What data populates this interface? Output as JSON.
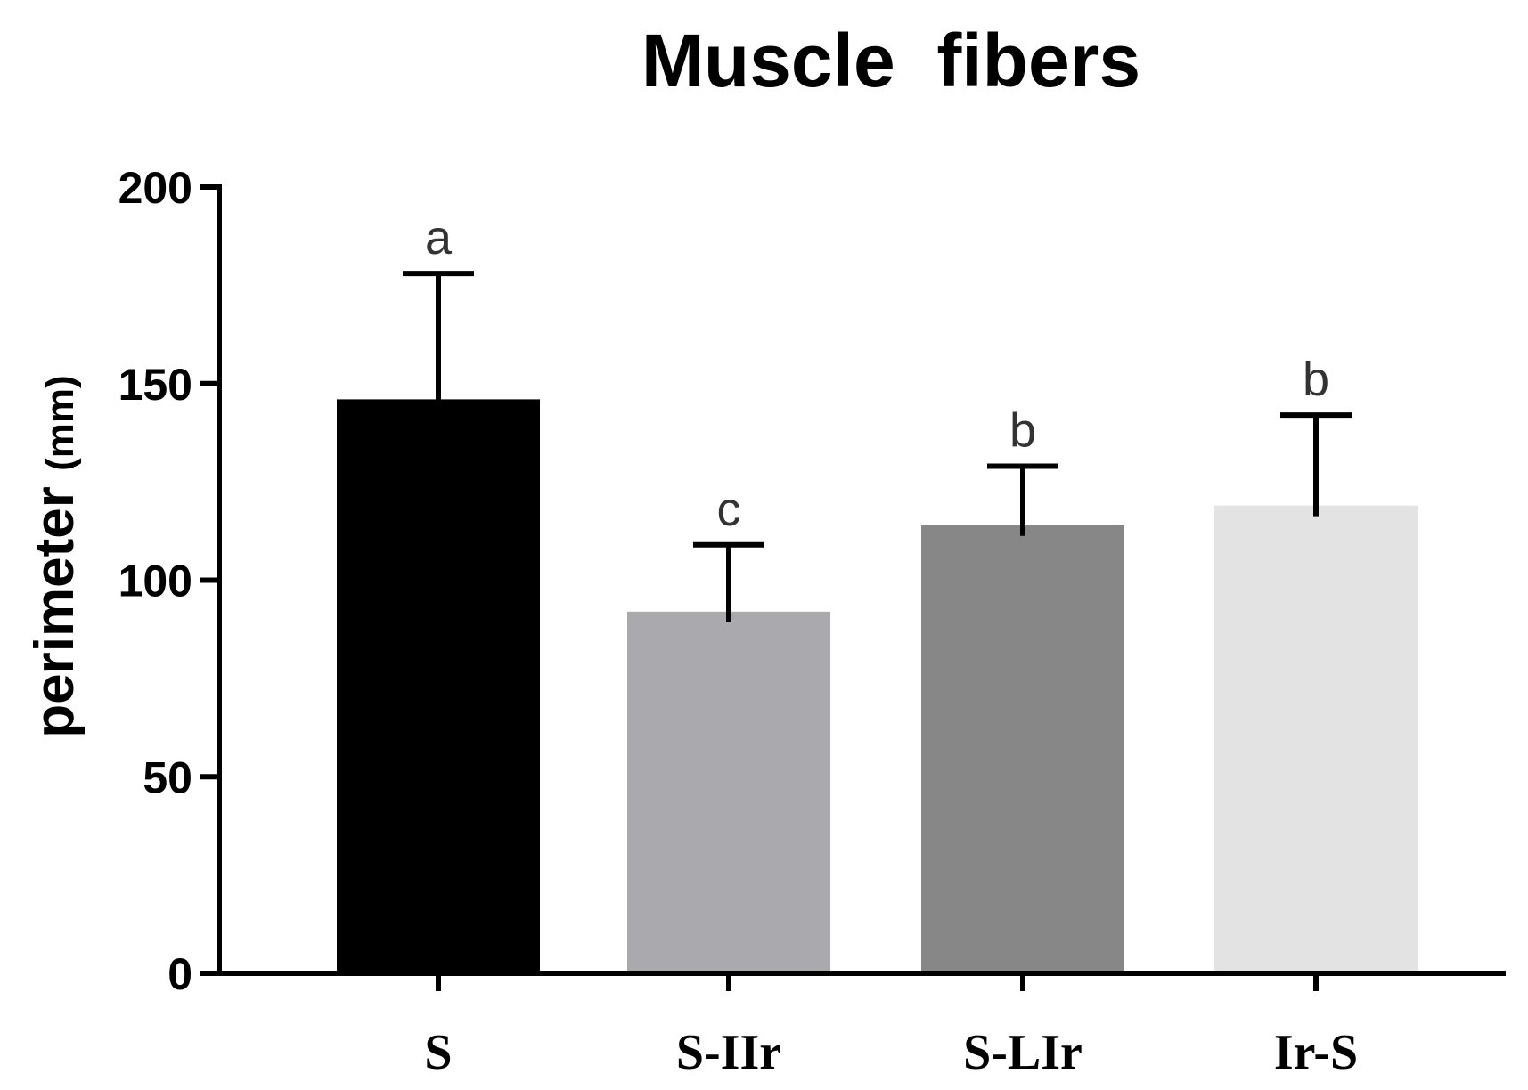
{
  "chart_data": {
    "type": "bar",
    "title": "Muscle  fibers",
    "ylabel": "perimeter",
    "ylabel_unit": "(mm)",
    "xlabel": "",
    "ylim": [
      0,
      200
    ],
    "yticks": [
      "0",
      "50",
      "100",
      "150",
      "200"
    ],
    "categories": [
      "S",
      "S-IIr",
      "S-LIr",
      "Ir-S"
    ],
    "values": [
      146,
      92,
      114,
      119
    ],
    "error_upper": [
      32,
      17,
      15,
      23
    ],
    "significance_labels": [
      "a",
      "c",
      "b",
      "b"
    ],
    "colors": [
      "#000000",
      "#a9a9ae",
      "#878787",
      "#e3e3e3"
    ],
    "grid": false,
    "legend": "none"
  }
}
